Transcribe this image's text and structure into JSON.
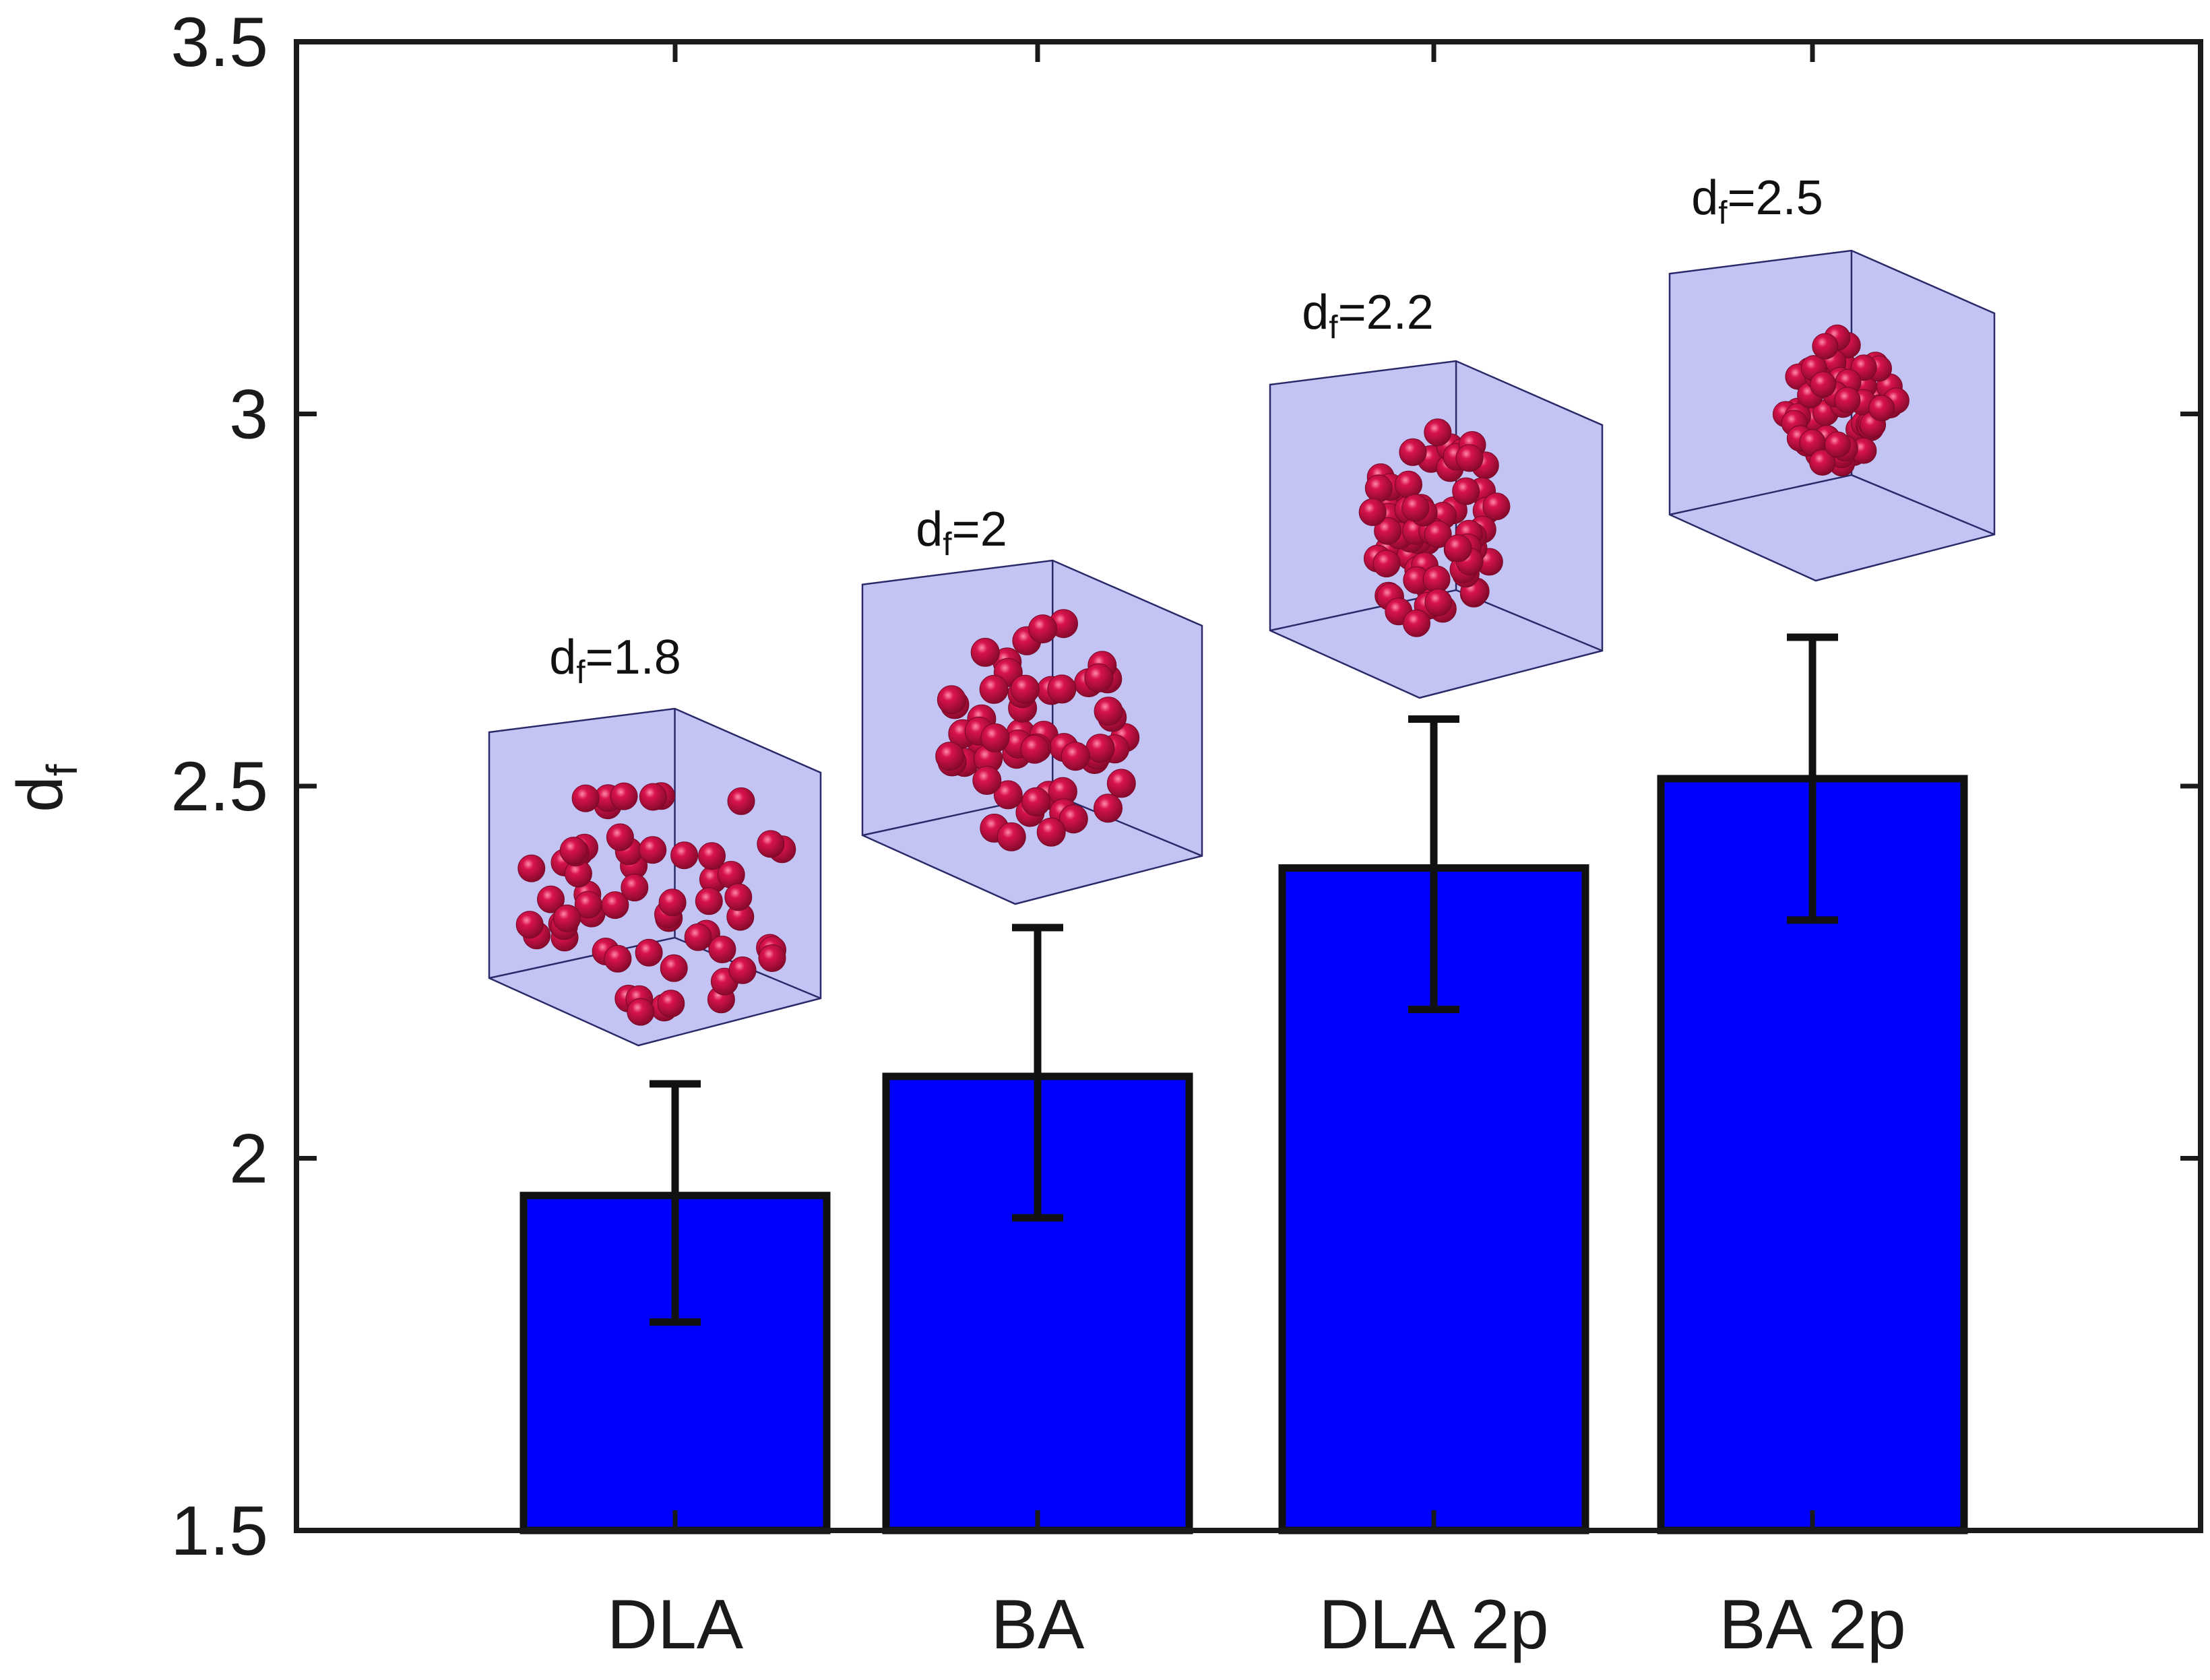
{
  "chart_data": {
    "type": "bar",
    "title": "",
    "xlabel": "",
    "ylabel": {
      "main": "d",
      "sub": "f"
    },
    "ylim": [
      1.5,
      3.5
    ],
    "yticks": [
      "1.5",
      "2",
      "2.5",
      "3",
      "3.5"
    ],
    "ytick_values": [
      1.5,
      2,
      2.5,
      3,
      3.5
    ],
    "categories": [
      "DLA",
      "BA",
      "DLA 2p",
      "BA 2p"
    ],
    "values": [
      1.95,
      2.11,
      2.39,
      2.51
    ],
    "error_low": [
      1.78,
      1.92,
      2.2,
      2.32
    ],
    "error_high": [
      2.1,
      2.31,
      2.59,
      2.7
    ],
    "bar_color": "#0000ff",
    "edge_color": "#111111",
    "grid": false,
    "annotations": [
      {
        "prefix": "d",
        "sub": "f",
        "text": "=1.8",
        "category": "DLA",
        "value": 1.8
      },
      {
        "prefix": "d",
        "sub": "f",
        "text": "=2",
        "category": "BA",
        "value": 2
      },
      {
        "prefix": "d",
        "sub": "f",
        "text": "=2.2",
        "category": "DLA 2p",
        "value": 2.2
      },
      {
        "prefix": "d",
        "sub": "f",
        "text": "=2.5",
        "category": "BA 2p",
        "value": 2.5
      }
    ],
    "inset_colors": {
      "cube_face": "#b8baf2",
      "cube_edge": "#2a2a6a",
      "particle": "#d8134c",
      "particle_highlight": "#ff8aa8"
    }
  }
}
